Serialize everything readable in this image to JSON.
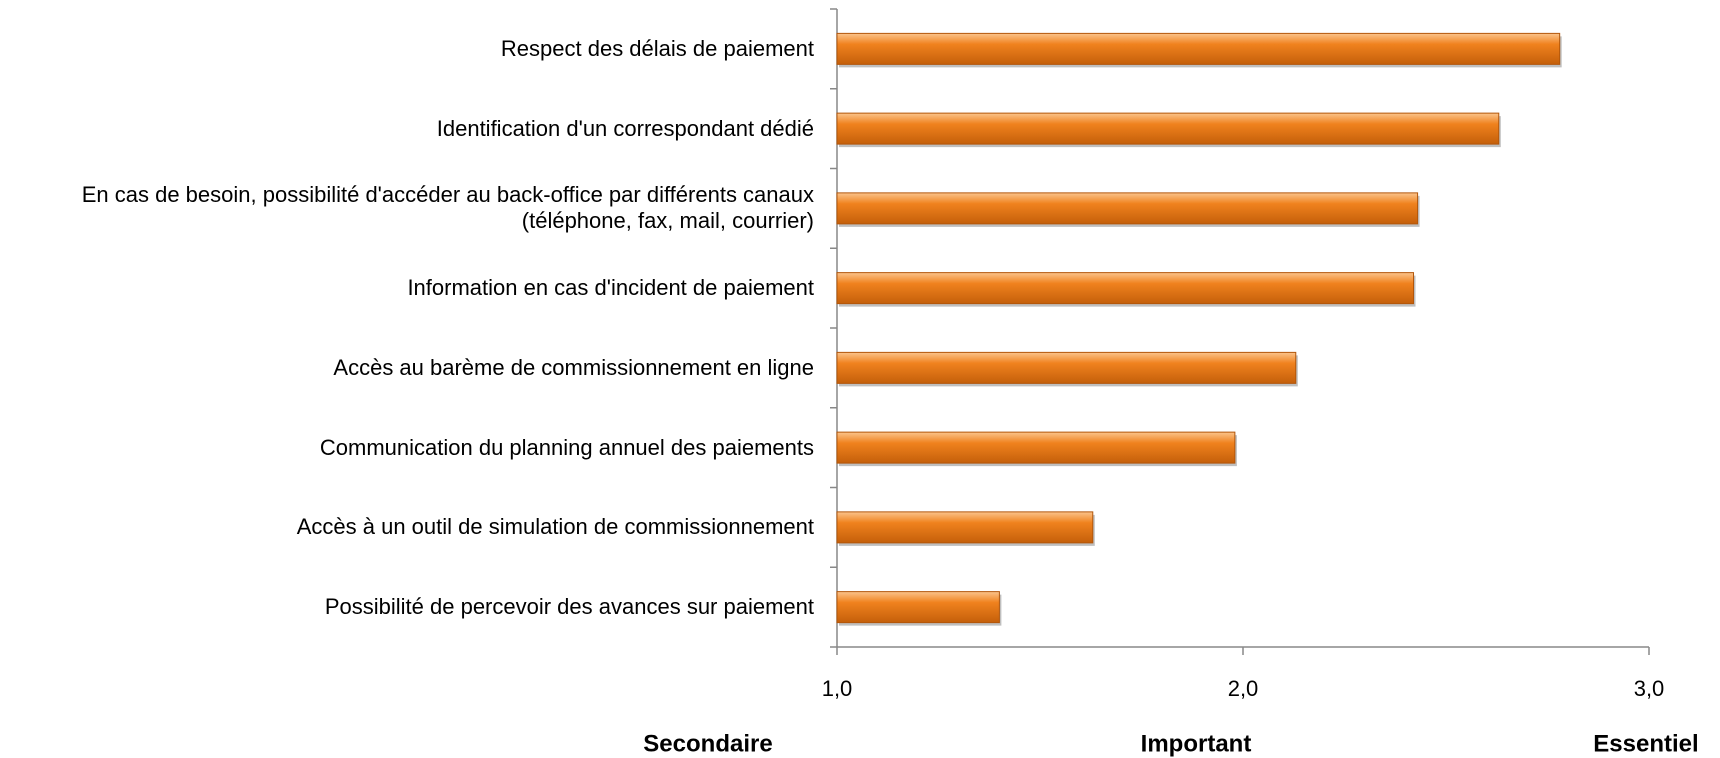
{
  "chart_data": {
    "type": "hbar",
    "categories": [
      "Respect des délais de paiement",
      "Identification d'un correspondant dédié",
      "En cas de besoin, possibilité d'accéder au back-office par différents canaux (téléphone, fax, mail, courrier)",
      "Information en cas d'incident de paiement",
      "Accès au barème de commissionnement en ligne",
      "Communication du planning annuel des paiements",
      "Accès à un outil de simulation de commissionnement",
      "Possibilité de percevoir des avances sur paiement"
    ],
    "values": [
      2.78,
      2.63,
      2.43,
      2.42,
      2.13,
      1.98,
      1.63,
      1.4
    ],
    "color": "#f0821e",
    "xlim": [
      1,
      3
    ],
    "xticks": [
      {
        "value": 1,
        "label": "1,0"
      },
      {
        "value": 2,
        "label": "2,0"
      },
      {
        "value": 3,
        "label": "3,0"
      }
    ],
    "annotations": [
      "Secondaire",
      "Important",
      "Essentiel"
    ]
  }
}
